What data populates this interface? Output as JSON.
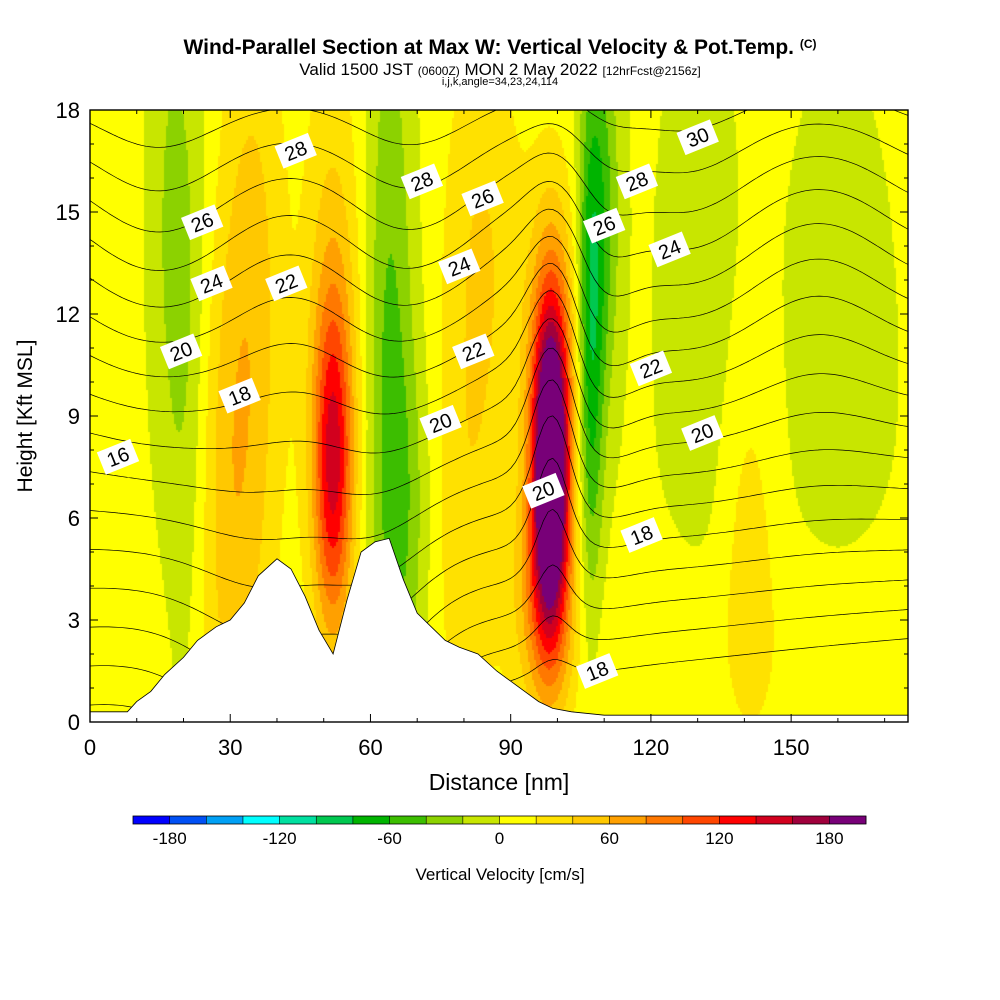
{
  "chart_data": {
    "type": "heatmap",
    "title": "Wind-Parallel Section at Max W: Vertical Velocity & Pot.Temp.",
    "title_mark": "(C)",
    "subtitle_main": "Valid 1500 JST",
    "subtitle_utc": "(0600Z)",
    "subtitle_date": "MON 2 May 2022",
    "subtitle_fcst": "[12hrFcst@2156z]",
    "subtitle_indices": "i,j,k,angle=34,23,24,114",
    "xlabel": "Distance [nm]",
    "ylabel": "Height [Kft MSL]",
    "xlim": [
      0,
      175
    ],
    "ylim": [
      0,
      18
    ],
    "xticks": [
      0,
      30,
      60,
      90,
      120,
      150
    ],
    "xtick_labels": [
      "0",
      "30",
      "60",
      "90",
      "120",
      "150"
    ],
    "yticks": [
      0,
      3,
      6,
      9,
      12,
      15,
      18
    ],
    "ytick_labels": [
      "0",
      "3",
      "6",
      "9",
      "12",
      "15",
      "18"
    ],
    "colorbar": {
      "label": "Vertical Velocity [cm/s]",
      "min": -200,
      "max": 200,
      "step": 20,
      "tick_values": [
        -180,
        -120,
        -60,
        0,
        60,
        120,
        180
      ],
      "tick_labels": [
        "-180",
        "-120",
        "-60",
        "0",
        "60",
        "120",
        "180"
      ],
      "colors": [
        "#0000ff",
        "#0050f5",
        "#00a0f5",
        "#00ffff",
        "#00e0a0",
        "#00c850",
        "#00b400",
        "#3cbe00",
        "#8cd200",
        "#c8e600",
        "#ffff00",
        "#ffe100",
        "#ffc800",
        "#ffa000",
        "#ff7800",
        "#ff4600",
        "#ff0000",
        "#d2001e",
        "#a0003c",
        "#780078"
      ]
    },
    "w_features": [
      {
        "x": 98.5,
        "z": 7.5,
        "sx": 2.6,
        "sz": 3.2,
        "amp": 210
      },
      {
        "x": 99,
        "z": 9.5,
        "sx": 4.0,
        "sz": 4.2,
        "amp": 80
      },
      {
        "x": 97,
        "z": 3.5,
        "sx": 4.5,
        "sz": 2.5,
        "amp": 60
      },
      {
        "x": 107,
        "z": 11,
        "sx": 2.0,
        "sz": 5.5,
        "amp": -80
      },
      {
        "x": 110,
        "z": 15,
        "sx": 2.5,
        "sz": 4.0,
        "amp": -45
      },
      {
        "x": 52,
        "z": 7.5,
        "sx": 3.0,
        "sz": 3.5,
        "amp": 120
      },
      {
        "x": 52,
        "z": 12,
        "sx": 4.5,
        "sz": 6,
        "amp": 40
      },
      {
        "x": 30,
        "z": 6,
        "sx": 6,
        "sz": 6,
        "amp": 45
      },
      {
        "x": 35,
        "z": 14,
        "sx": 5,
        "sz": 6,
        "amp": 35
      },
      {
        "x": 21,
        "z": 10,
        "sx": 3.5,
        "sz": 7,
        "amp": -30
      },
      {
        "x": 17,
        "z": 15,
        "sx": 3,
        "sz": 5,
        "amp": -20
      },
      {
        "x": 64,
        "z": 11,
        "sx": 3.5,
        "sz": 8,
        "amp": -45
      },
      {
        "x": 68,
        "z": 6,
        "sx": 4,
        "sz": 4,
        "amp": -30
      },
      {
        "x": 84,
        "z": 14,
        "sx": 6,
        "sz": 5,
        "amp": 35
      },
      {
        "x": 80,
        "z": 5,
        "sx": 6,
        "sz": 5,
        "amp": 25
      },
      {
        "x": 130,
        "z": 12,
        "sx": 6,
        "sz": 6,
        "amp": -15
      },
      {
        "x": 141,
        "z": 5,
        "sx": 4,
        "sz": 4,
        "amp": 25
      },
      {
        "x": 160,
        "z": 10,
        "sx": 8,
        "sz": 6,
        "amp": -15
      },
      {
        "x": 120,
        "z": 2,
        "sx": 12,
        "sz": 2,
        "amp": 15
      },
      {
        "x": 160,
        "z": 2,
        "sx": 12,
        "sz": 2.5,
        "amp": 15
      },
      {
        "x": 6,
        "z": 2,
        "sx": 6,
        "sz": 2,
        "amp": 12
      }
    ],
    "theta_contours": {
      "min": 14,
      "max": 31,
      "step": 1,
      "labels": [
        {
          "text": "16",
          "x": 6,
          "z": 7.8
        },
        {
          "text": "18",
          "x": 32,
          "z": 9.6
        },
        {
          "text": "18",
          "x": 118,
          "z": 5.5
        },
        {
          "text": "18",
          "x": 108.5,
          "z": 1.5
        },
        {
          "text": "20",
          "x": 19.5,
          "z": 10.9
        },
        {
          "text": "20",
          "x": 75,
          "z": 8.8
        },
        {
          "text": "20",
          "x": 97,
          "z": 6.8
        },
        {
          "text": "20",
          "x": 131,
          "z": 8.5
        },
        {
          "text": "22",
          "x": 42,
          "z": 12.9
        },
        {
          "text": "22",
          "x": 82,
          "z": 10.9
        },
        {
          "text": "22",
          "x": 120,
          "z": 10.4
        },
        {
          "text": "24",
          "x": 26,
          "z": 12.9
        },
        {
          "text": "24",
          "x": 79,
          "z": 13.4
        },
        {
          "text": "24",
          "x": 124,
          "z": 13.9
        },
        {
          "text": "26",
          "x": 24,
          "z": 14.7
        },
        {
          "text": "26",
          "x": 84,
          "z": 15.4
        },
        {
          "text": "26",
          "x": 110,
          "z": 14.6
        },
        {
          "text": "28",
          "x": 44,
          "z": 16.8
        },
        {
          "text": "28",
          "x": 71,
          "z": 15.9
        },
        {
          "text": "28",
          "x": 117,
          "z": 15.9
        },
        {
          "text": "30",
          "x": 130,
          "z": 17.2
        }
      ]
    },
    "terrain": [
      [
        0,
        0.3
      ],
      [
        8,
        0.3
      ],
      [
        10,
        0.6
      ],
      [
        13,
        0.9
      ],
      [
        16,
        1.4
      ],
      [
        20,
        1.9
      ],
      [
        23,
        2.4
      ],
      [
        25,
        2.6
      ],
      [
        27,
        2.8
      ],
      [
        30,
        3.0
      ],
      [
        33,
        3.5
      ],
      [
        36,
        4.3
      ],
      [
        40,
        4.8
      ],
      [
        43,
        4.5
      ],
      [
        46,
        3.7
      ],
      [
        49,
        2.7
      ],
      [
        52,
        2.0
      ],
      [
        55,
        3.6
      ],
      [
        58,
        5.0
      ],
      [
        61,
        5.3
      ],
      [
        64,
        5.4
      ],
      [
        67,
        4.2
      ],
      [
        70,
        3.2
      ],
      [
        73,
        2.8
      ],
      [
        76,
        2.4
      ],
      [
        79,
        2.2
      ],
      [
        83,
        2.0
      ],
      [
        87,
        1.5
      ],
      [
        90,
        1.2
      ],
      [
        93,
        0.9
      ],
      [
        96,
        0.6
      ],
      [
        99,
        0.4
      ],
      [
        103,
        0.3
      ],
      [
        110,
        0.2
      ],
      [
        130,
        0.2
      ],
      [
        150,
        0.2
      ],
      [
        175,
        0.2
      ]
    ]
  }
}
